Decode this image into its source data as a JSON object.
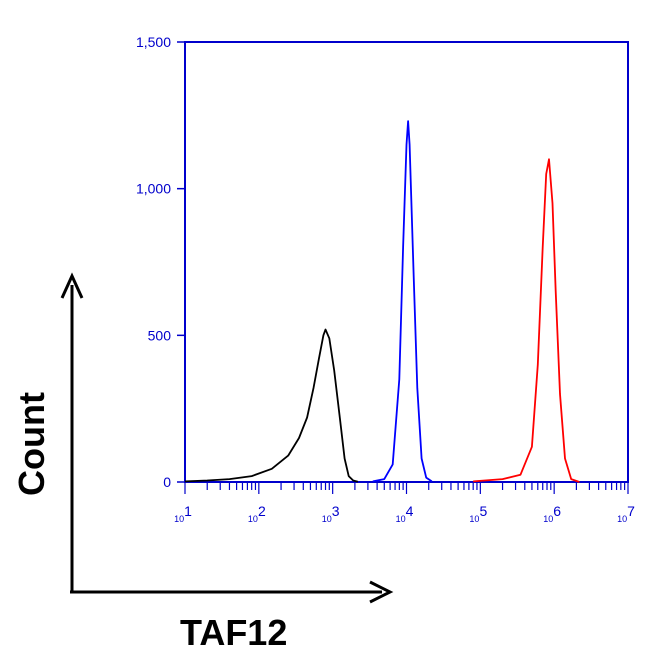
{
  "chart_data": {
    "type": "line",
    "xlabel": "TAF12",
    "ylabel": "Count",
    "x_scale": "log",
    "xlim": [
      10,
      10000000
    ],
    "ylim": [
      0,
      1500
    ],
    "y_ticks": [
      0,
      500,
      1000,
      1500
    ],
    "y_tick_labels": [
      "0",
      "500",
      "1,000",
      "1,500"
    ],
    "x_ticks": [
      10,
      100,
      1000,
      10000,
      100000,
      1000000,
      10000000
    ],
    "x_tick_labels": [
      {
        "base": "10",
        "exp": "1"
      },
      {
        "base": "10",
        "exp": "2"
      },
      {
        "base": "10",
        "exp": "3"
      },
      {
        "base": "10",
        "exp": "4"
      },
      {
        "base": "10",
        "exp": "5"
      },
      {
        "base": "10",
        "exp": "6"
      },
      {
        "base": "10",
        "exp": "7"
      }
    ],
    "grid": false,
    "axis_color": "#0000cc",
    "series": [
      {
        "color": "#000000",
        "points": [
          [
            10,
            2
          ],
          [
            20,
            5
          ],
          [
            40,
            10
          ],
          [
            80,
            20
          ],
          [
            150,
            45
          ],
          [
            250,
            90
          ],
          [
            350,
            150
          ],
          [
            450,
            220
          ],
          [
            550,
            320
          ],
          [
            650,
            420
          ],
          [
            750,
            500
          ],
          [
            800,
            520
          ],
          [
            900,
            490
          ],
          [
            1050,
            380
          ],
          [
            1250,
            220
          ],
          [
            1450,
            80
          ],
          [
            1650,
            20
          ],
          [
            1900,
            5
          ],
          [
            2200,
            1
          ]
        ]
      },
      {
        "color": "#0000ff",
        "points": [
          [
            3500,
            2
          ],
          [
            5000,
            10
          ],
          [
            6500,
            60
          ],
          [
            8000,
            350
          ],
          [
            9000,
            800
          ],
          [
            10000,
            1150
          ],
          [
            10500,
            1230
          ],
          [
            11000,
            1150
          ],
          [
            12500,
            700
          ],
          [
            14000,
            320
          ],
          [
            16000,
            80
          ],
          [
            18500,
            15
          ],
          [
            22000,
            2
          ]
        ]
      },
      {
        "color": "#ff0000",
        "points": [
          [
            80000,
            2
          ],
          [
            200000,
            10
          ],
          [
            350000,
            25
          ],
          [
            500000,
            120
          ],
          [
            600000,
            400
          ],
          [
            700000,
            800
          ],
          [
            780000,
            1050
          ],
          [
            850000,
            1100
          ],
          [
            950000,
            950
          ],
          [
            1050000,
            650
          ],
          [
            1200000,
            300
          ],
          [
            1400000,
            80
          ],
          [
            1700000,
            10
          ],
          [
            2200000,
            0
          ]
        ]
      }
    ]
  }
}
